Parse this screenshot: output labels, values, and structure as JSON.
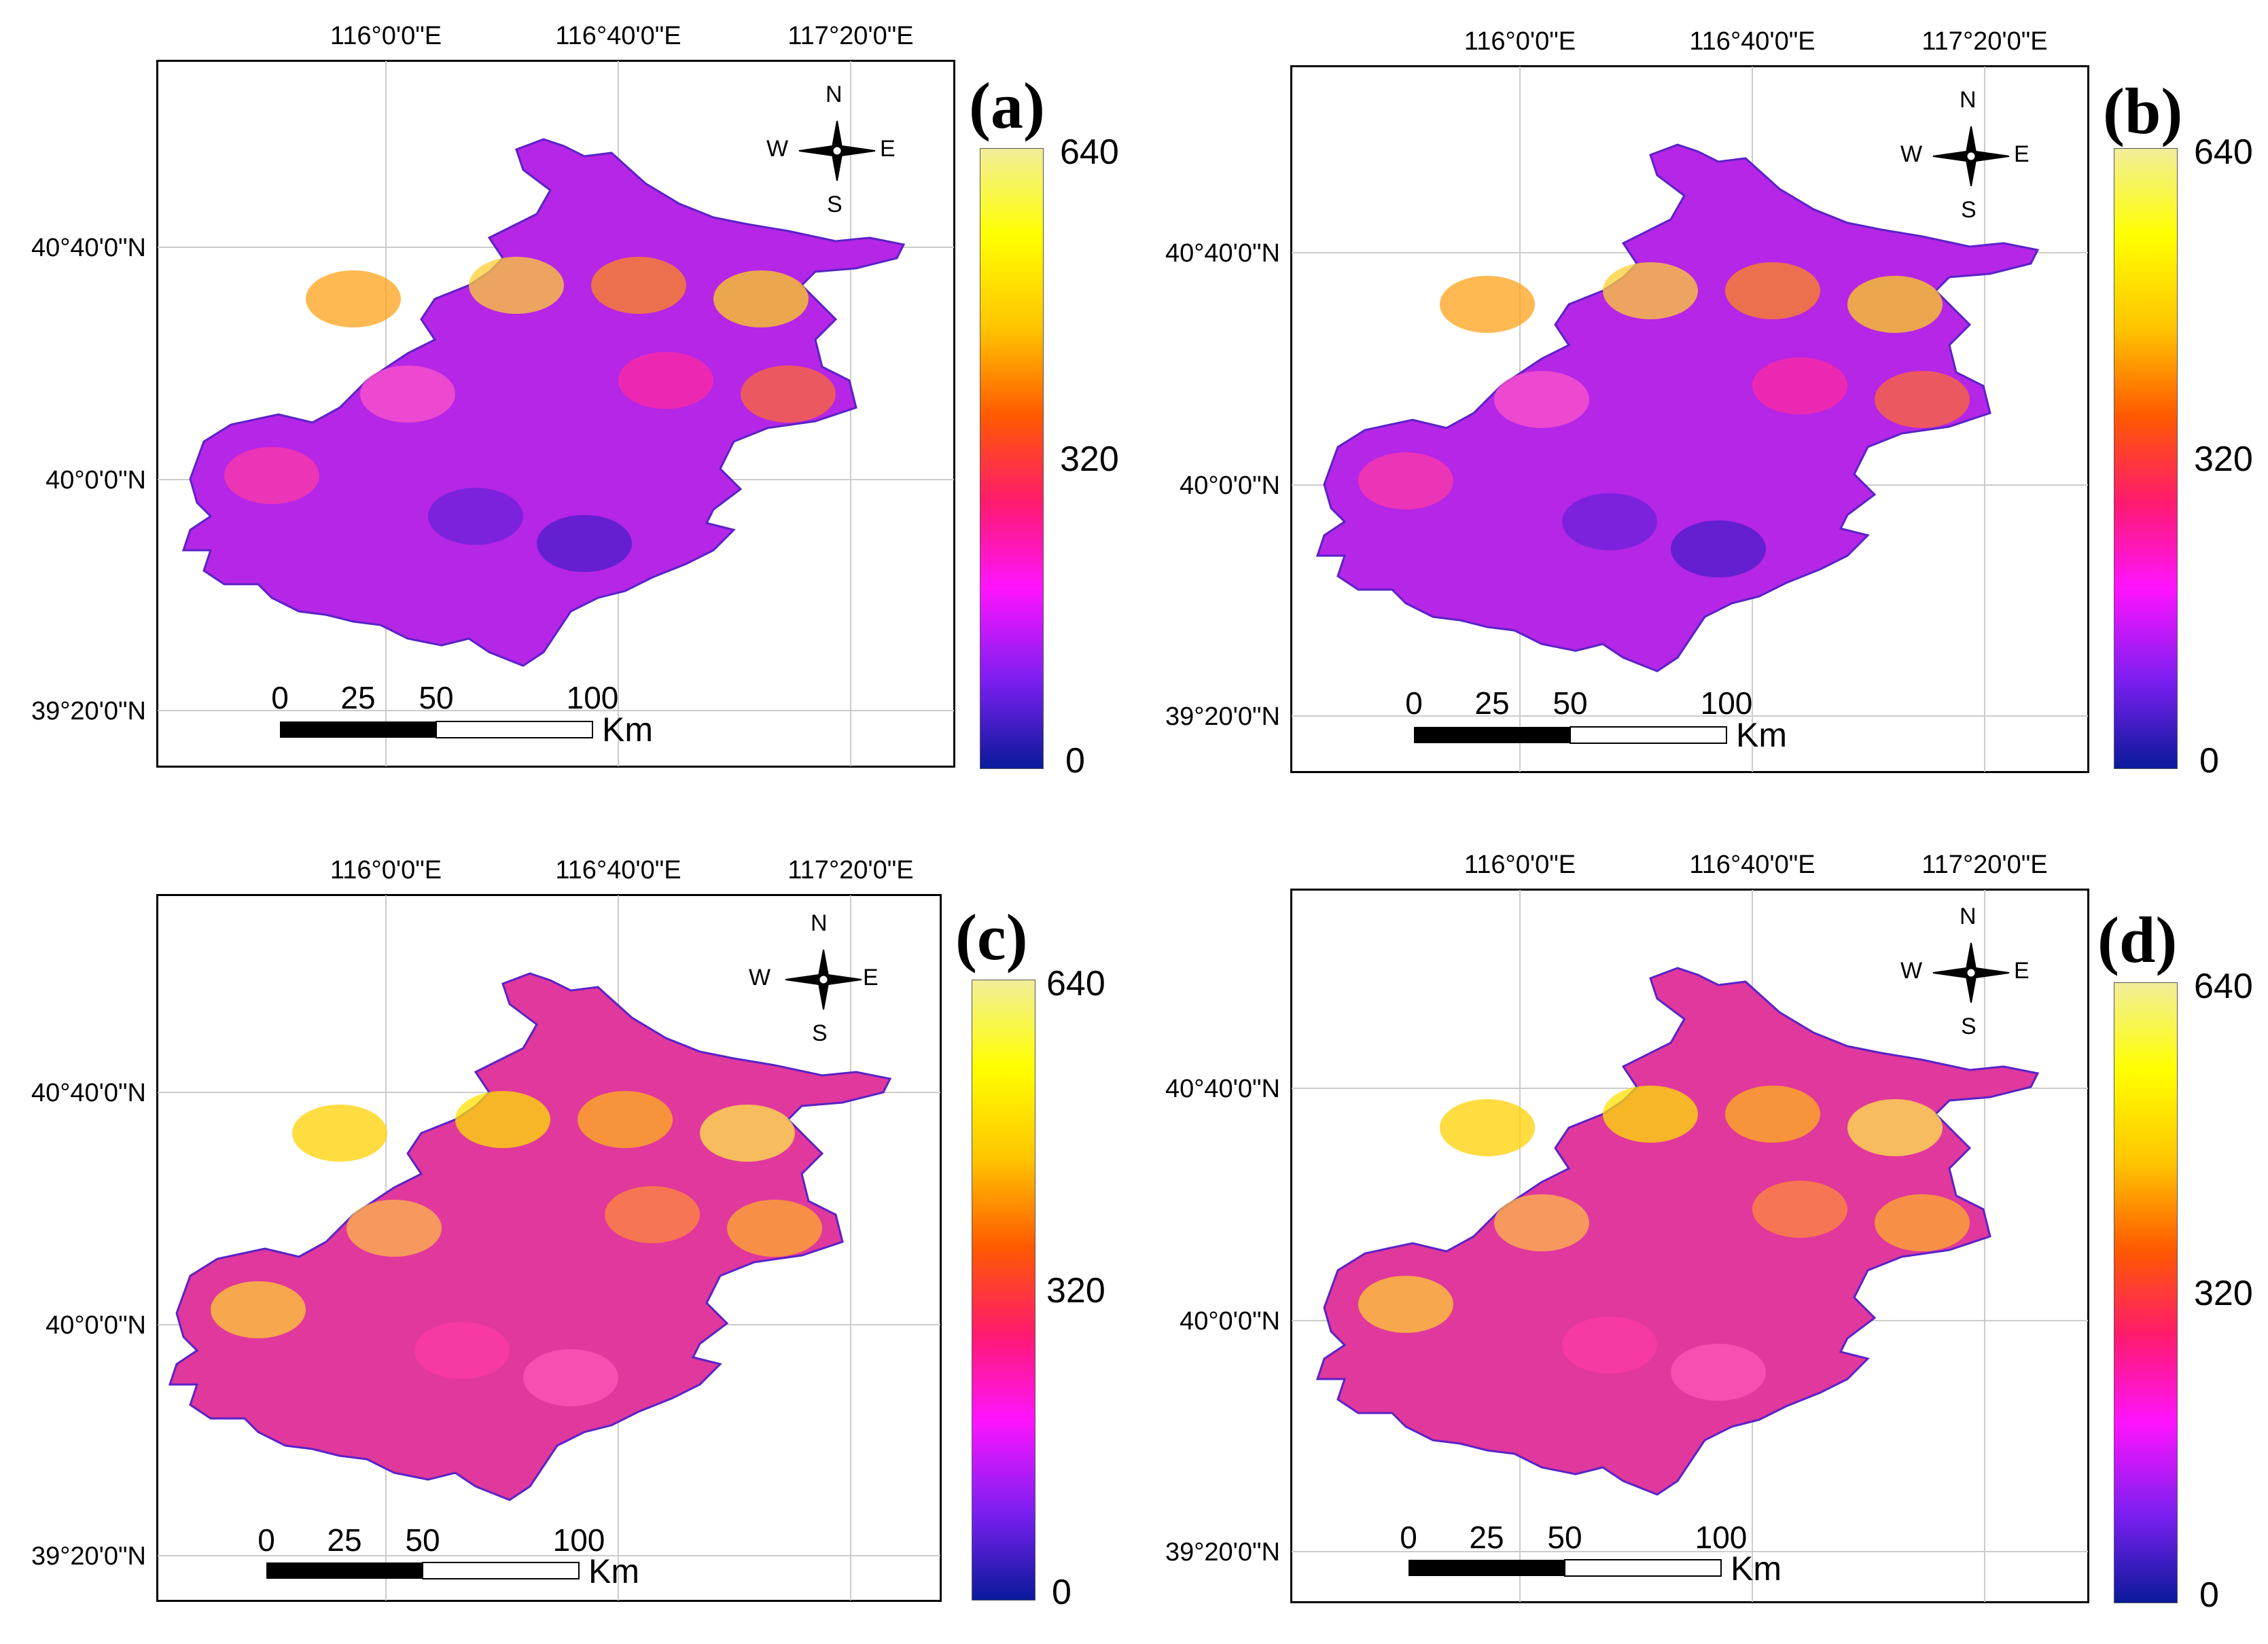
{
  "figure": {
    "panels": [
      {
        "id": "a",
        "label": "(a)",
        "lon_labels": [
          "116°0'0\"E",
          "116°40'0\"E",
          "117°20'0\"E"
        ],
        "lat_labels": [
          "40°40'0\"N",
          "40°0'0\"N",
          "39°20'0\"N"
        ],
        "colorbar": {
          "max": "640",
          "mid": "320",
          "min": "0"
        },
        "compass": {
          "n": "N",
          "s": "S",
          "e": "E",
          "w": "W"
        },
        "scalebar": {
          "ticks": [
            "0",
            "25",
            "50",
            "100"
          ],
          "unit": "Km"
        }
      },
      {
        "id": "b",
        "label": "(b)",
        "lon_labels": [
          "116°0'0\"E",
          "116°40'0\"E",
          "117°20'0\"E"
        ],
        "lat_labels": [
          "40°40'0\"N",
          "40°0'0\"N",
          "39°20'0\"N"
        ],
        "colorbar": {
          "max": "640",
          "mid": "320",
          "min": "0"
        },
        "compass": {
          "n": "N",
          "s": "S",
          "e": "E",
          "w": "W"
        },
        "scalebar": {
          "ticks": [
            "0",
            "25",
            "50",
            "100"
          ],
          "unit": "Km"
        }
      },
      {
        "id": "c",
        "label": "(c)",
        "lon_labels": [
          "116°0'0\"E",
          "116°40'0\"E",
          "117°20'0\"E"
        ],
        "lat_labels": [
          "40°40'0\"N",
          "40°0'0\"N",
          "39°20'0\"N"
        ],
        "colorbar": {
          "max": "640",
          "mid": "320",
          "min": "0"
        },
        "compass": {
          "n": "N",
          "s": "S",
          "e": "E",
          "w": "W"
        },
        "scalebar": {
          "ticks": [
            "0",
            "25",
            "50",
            "100"
          ],
          "unit": "Km"
        }
      },
      {
        "id": "d",
        "label": "(d)",
        "lon_labels": [
          "116°0'0\"E",
          "116°40'0\"E",
          "117°20'0\"E"
        ],
        "lat_labels": [
          "40°40'0\"N",
          "40°0'0\"N",
          "39°20'0\"N"
        ],
        "colorbar": {
          "max": "640",
          "mid": "320",
          "min": "0"
        },
        "compass": {
          "n": "N",
          "s": "S",
          "e": "E",
          "w": "W"
        },
        "scalebar": {
          "ticks": [
            "0",
            "25",
            "50",
            "100"
          ],
          "unit": "Km"
        }
      }
    ],
    "colormap": [
      "#0a1a9a",
      "#7a1ff0",
      "#ff14ff",
      "#ff1a6e",
      "#ff5a00",
      "#ffc400",
      "#ffff00",
      "#f2ee9a"
    ]
  }
}
